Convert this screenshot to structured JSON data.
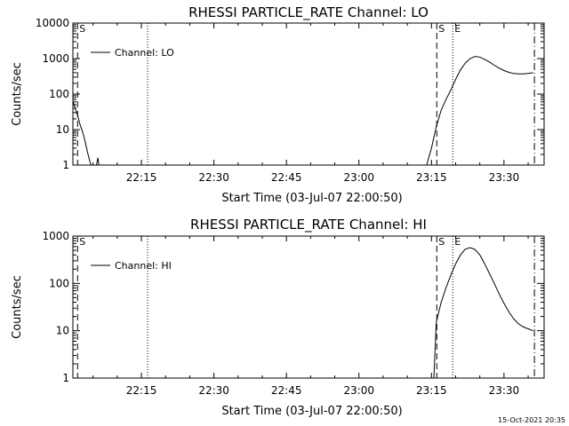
{
  "timestamp": "15-Oct-2021 20:35",
  "chart_data": [
    {
      "type": "line",
      "title": "RHESSI PARTICLE_RATE Channel: LO",
      "xlabel": "Start Time (03-Jul-07 22:00:50)",
      "ylabel": "Counts/sec",
      "yscale": "log",
      "ylim": [
        1,
        10000
      ],
      "xlim": [
        0.83,
        98.3
      ],
      "xticks": [
        15,
        30,
        45,
        60,
        75,
        90
      ],
      "xtick_labels": [
        "22:15",
        "22:30",
        "22:45",
        "23:00",
        "23:15",
        "23:30"
      ],
      "yticks": [
        1,
        10,
        100,
        1000,
        10000
      ],
      "ytick_labels": [
        "1",
        "10",
        "100",
        "1000",
        "10000"
      ],
      "legend": "Channel: LO",
      "legend_position": "top-left",
      "series": [
        {
          "name": "Channel: LO",
          "x": [
            0.9,
            1.3,
            1.8,
            2.3,
            2.8,
            3.3,
            3.8,
            4.3,
            4.6
          ],
          "y": [
            60,
            40,
            25,
            14,
            9,
            5,
            2.5,
            1.3,
            1.0
          ],
          "x2": [
            5.7,
            6.0,
            6.2
          ],
          "y2": [
            1.0,
            1.6,
            1.0
          ],
          "x3": [
            74.0,
            75.0,
            76.0,
            77.0,
            78.0,
            79.0,
            80.0,
            81.0,
            82.0,
            83.0,
            84.0,
            85.0,
            86.0,
            87.0,
            88.0,
            89.0,
            90.0,
            91.0,
            92.0,
            93.0,
            94.0,
            95.0,
            96.0
          ],
          "y3": [
            1.0,
            3.0,
            12,
            35,
            70,
            130,
            260,
            480,
            750,
            1000,
            1150,
            1100,
            950,
            800,
            650,
            540,
            460,
            410,
            380,
            370,
            370,
            380,
            400
          ]
        }
      ],
      "vlines": [
        {
          "x": 1.8,
          "style": "dashed",
          "label": "S"
        },
        {
          "x": 16.3,
          "style": "dotted",
          "label": ""
        },
        {
          "x": 76.1,
          "style": "dashed",
          "label": "S"
        },
        {
          "x": 79.4,
          "style": "dotted",
          "label": "E"
        },
        {
          "x": 96.3,
          "style": "dashdot",
          "label": ""
        }
      ]
    },
    {
      "type": "line",
      "title": "RHESSI PARTICLE_RATE Channel: HI",
      "xlabel": "Start Time (03-Jul-07 22:00:50)",
      "ylabel": "Counts/sec",
      "yscale": "log",
      "ylim": [
        1,
        1000
      ],
      "xlim": [
        0.83,
        98.3
      ],
      "xticks": [
        15,
        30,
        45,
        60,
        75,
        90
      ],
      "xtick_labels": [
        "22:15",
        "22:30",
        "22:45",
        "23:00",
        "23:15",
        "23:30"
      ],
      "yticks": [
        1,
        10,
        100,
        1000
      ],
      "ytick_labels": [
        "1",
        "10",
        "100",
        "1000"
      ],
      "legend": "Channel: HI",
      "legend_position": "top-left",
      "series": [
        {
          "name": "Channel: HI",
          "x": [
            75.5,
            76.0,
            77.0,
            78.0,
            79.0,
            80.0,
            81.0,
            82.0,
            83.0,
            84.0,
            85.0,
            86.0,
            87.0,
            88.0,
            89.0,
            90.0,
            91.0,
            92.0,
            93.0,
            94.0,
            95.0,
            96.0
          ],
          "y": [
            1.0,
            15,
            40,
            80,
            150,
            260,
            400,
            530,
            570,
            520,
            400,
            260,
            160,
            100,
            60,
            38,
            25,
            18,
            14,
            12,
            11,
            10
          ]
        }
      ],
      "vlines": [
        {
          "x": 1.8,
          "style": "dashed",
          "label": "S"
        },
        {
          "x": 16.3,
          "style": "dotted",
          "label": ""
        },
        {
          "x": 76.1,
          "style": "dashed",
          "label": "S"
        },
        {
          "x": 79.4,
          "style": "dotted",
          "label": "E"
        },
        {
          "x": 96.3,
          "style": "dashdot",
          "label": ""
        }
      ]
    }
  ]
}
